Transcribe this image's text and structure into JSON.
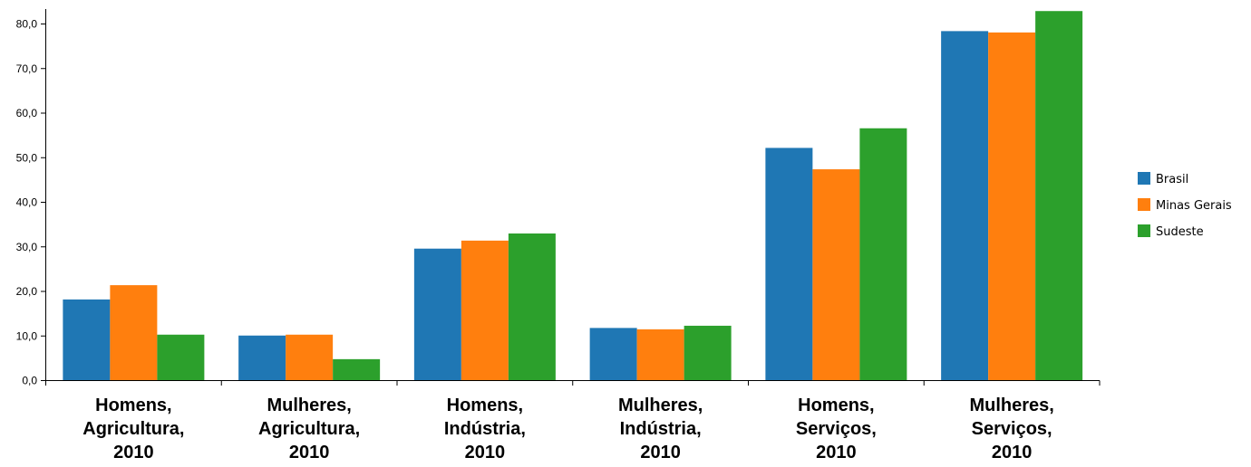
{
  "chart_data": {
    "type": "bar",
    "categories": [
      [
        "Homens,",
        "Agricultura,",
        "2010"
      ],
      [
        "Mulheres,",
        "Agricultura,",
        "2010"
      ],
      [
        "Homens,",
        "Indústria,",
        "2010"
      ],
      [
        "Mulheres,",
        "Indústria,",
        "2010"
      ],
      [
        "Homens,",
        "Serviços,",
        "2010"
      ],
      [
        "Mulheres,",
        "Serviços,",
        "2010"
      ]
    ],
    "series": [
      {
        "name": "Brasil",
        "color": "#1f77b4",
        "values": [
          18.2,
          10.1,
          29.6,
          11.8,
          52.2,
          78.4
        ]
      },
      {
        "name": "Minas Gerais",
        "color": "#ff7f0e",
        "values": [
          21.4,
          10.3,
          31.4,
          11.5,
          47.4,
          78.1
        ]
      },
      {
        "name": "Sudeste",
        "color": "#2ca02c",
        "values": [
          10.3,
          4.8,
          33.0,
          12.3,
          56.6,
          82.9
        ]
      }
    ],
    "yticks": [
      "0,0",
      "10,0",
      "20,0",
      "30,0",
      "40,0",
      "50,0",
      "60,0",
      "70,0",
      "80,0"
    ],
    "ylim": [
      0,
      82.9
    ],
    "legend_position": "right"
  }
}
